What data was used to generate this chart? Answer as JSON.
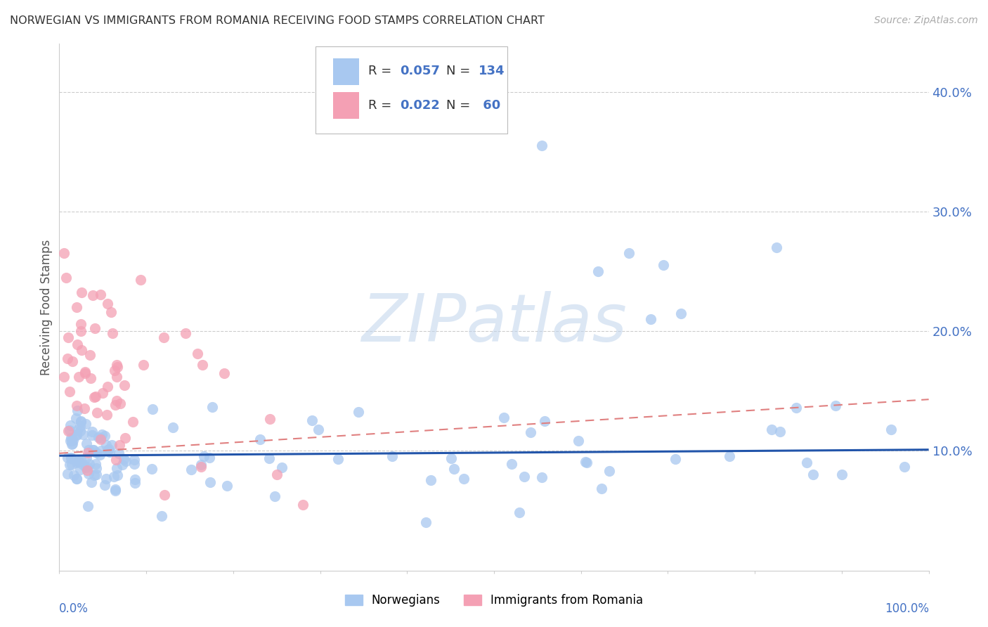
{
  "title": "NORWEGIAN VS IMMIGRANTS FROM ROMANIA RECEIVING FOOD STAMPS CORRELATION CHART",
  "source": "Source: ZipAtlas.com",
  "ylabel": "Receiving Food Stamps",
  "y_ticks": [
    0.1,
    0.2,
    0.3,
    0.4
  ],
  "y_tick_labels": [
    "10.0%",
    "20.0%",
    "30.0%",
    "40.0%"
  ],
  "xlim": [
    0.0,
    1.0
  ],
  "ylim": [
    0.0,
    0.44
  ],
  "legend_R1": "0.057",
  "legend_N1": "134",
  "legend_R2": "0.022",
  "legend_N2": "60",
  "norwegian_color": "#a8c8f0",
  "romanian_color": "#f4a0b4",
  "trend_line_color_norwegian": "#2255aa",
  "trend_line_color_romanian": "#e08080",
  "background_color": "#ffffff",
  "grid_color": "#cccccc",
  "title_color": "#333333",
  "tick_color": "#4472c4",
  "watermark_text": "ZIPatlas",
  "norw_trend_x0": 0.0,
  "norw_trend_y0": 0.096,
  "norw_trend_x1": 1.0,
  "norw_trend_y1": 0.101,
  "rom_trend_x0": 0.0,
  "rom_trend_y0": 0.098,
  "rom_trend_x1": 1.0,
  "rom_trend_y1": 0.143
}
